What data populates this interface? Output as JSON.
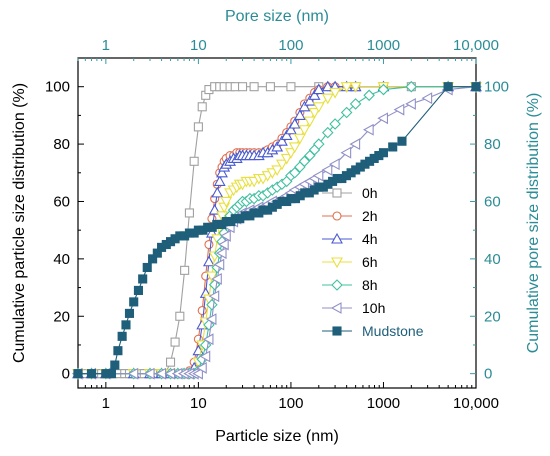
{
  "chart_data": {
    "type": "line",
    "xlabel": "Particle size (nm)",
    "x2label": "Pore size (nm)",
    "ylabel": "Cumulative particle size distribution (%)",
    "y2label": "Cumulative pore size distribution (%)",
    "xscale": "log",
    "xlim": [
      0.5,
      10000
    ],
    "ylim": [
      -5,
      110
    ],
    "x_ticks": [
      {
        "v": 1,
        "label": "1"
      },
      {
        "v": 10,
        "label": "10"
      },
      {
        "v": 100,
        "label": "100"
      },
      {
        "v": 1000,
        "label": "1000"
      },
      {
        "v": 10000,
        "label": "10,000"
      }
    ],
    "y_ticks": [
      {
        "v": 0,
        "label": "0"
      },
      {
        "v": 20,
        "label": "20"
      },
      {
        "v": 40,
        "label": "40"
      },
      {
        "v": 60,
        "label": "60"
      },
      {
        "v": 80,
        "label": "80"
      },
      {
        "v": 100,
        "label": "100"
      }
    ],
    "legend_position": "right-center",
    "series": [
      {
        "name": "0h",
        "marker": "square-open",
        "color": "#a0a0a0",
        "x": [
          0.5,
          0.6,
          0.7,
          0.8,
          0.9,
          1.0,
          1.1,
          1.2,
          1.4,
          1.6,
          1.8,
          2.0,
          2.3,
          2.6,
          3.0,
          3.4,
          3.9,
          4.4,
          5.0,
          5.6,
          6.3,
          7.1,
          8.0,
          9.0,
          10,
          11,
          12,
          13,
          15,
          17,
          19,
          22,
          25,
          30,
          40,
          60,
          100,
          200,
          500,
          1000,
          2000,
          5000,
          10000
        ],
        "y": [
          0,
          0,
          0,
          0,
          0,
          0,
          0,
          0,
          0,
          0,
          0,
          0,
          0,
          0,
          0,
          0,
          0,
          0,
          4,
          11,
          20,
          36,
          56,
          74,
          86,
          93,
          97,
          99,
          100,
          100,
          100,
          100,
          100,
          100,
          100,
          100,
          100,
          100,
          100,
          100,
          100,
          100,
          100
        ]
      },
      {
        "name": "2h",
        "marker": "circle-open",
        "color": "#e07050",
        "x": [
          0.5,
          0.7,
          1,
          2,
          3,
          4,
          5,
          6,
          7,
          8,
          9,
          10,
          11,
          12,
          13,
          14,
          15,
          16,
          17,
          18,
          19,
          20,
          22,
          24,
          26,
          28,
          30,
          33,
          36,
          40,
          45,
          50,
          56,
          63,
          71,
          80,
          90,
          100,
          110,
          125,
          140,
          160,
          180,
          200,
          250,
          300,
          400,
          500,
          1000,
          5000,
          10000
        ],
        "y": [
          0,
          0,
          0,
          0,
          0,
          0,
          0,
          0,
          0,
          1,
          4,
          12,
          22,
          34,
          45,
          54,
          61,
          66,
          70,
          72,
          74,
          75,
          76,
          76,
          77,
          77,
          77,
          77,
          77,
          77,
          77,
          77,
          78,
          79,
          80,
          82,
          84,
          86,
          88,
          91,
          94,
          96,
          98,
          99,
          100,
          100,
          100,
          100,
          100,
          100,
          100
        ]
      },
      {
        "name": "4h",
        "marker": "triangle-up-open",
        "color": "#4a5ad0",
        "x": [
          0.5,
          0.7,
          1,
          2,
          3,
          4,
          5,
          6,
          7,
          8,
          9,
          10,
          11,
          12,
          13,
          14,
          15,
          16,
          17,
          18,
          19,
          20,
          22,
          24,
          26,
          28,
          30,
          33,
          36,
          40,
          45,
          50,
          56,
          63,
          71,
          80,
          90,
          100,
          110,
          125,
          140,
          160,
          180,
          200,
          250,
          300,
          400,
          500,
          1000,
          5000,
          10000
        ],
        "y": [
          0,
          0,
          0,
          0,
          0,
          0,
          0,
          0,
          0,
          0,
          2,
          8,
          17,
          28,
          39,
          49,
          57,
          63,
          67,
          70,
          72,
          73,
          74,
          75,
          75,
          76,
          76,
          76,
          76,
          76,
          76,
          77,
          77,
          78,
          79,
          81,
          83,
          85,
          87,
          90,
          93,
          95,
          97,
          99,
          100,
          100,
          100,
          100,
          100,
          100,
          100
        ]
      },
      {
        "name": "6h",
        "marker": "triangle-down-open",
        "color": "#e8e040",
        "x": [
          0.5,
          0.7,
          1,
          2,
          3,
          4,
          5,
          6,
          7,
          8,
          9,
          10,
          11,
          12,
          13,
          14,
          15,
          16,
          17,
          18,
          19,
          20,
          22,
          24,
          26,
          28,
          30,
          33,
          36,
          40,
          45,
          50,
          56,
          63,
          71,
          80,
          90,
          100,
          110,
          125,
          140,
          160,
          180,
          200,
          250,
          300,
          400,
          500,
          1000,
          5000,
          10000
        ],
        "y": [
          0,
          0,
          0,
          0,
          0,
          0,
          0,
          0,
          0,
          0,
          0,
          4,
          10,
          18,
          26,
          34,
          41,
          47,
          51,
          55,
          58,
          60,
          63,
          64,
          65,
          66,
          66,
          67,
          67,
          67,
          68,
          68,
          69,
          70,
          71,
          73,
          75,
          77,
          79,
          82,
          85,
          88,
          91,
          93,
          96,
          98,
          100,
          100,
          100,
          100,
          100
        ]
      },
      {
        "name": "8h",
        "marker": "diamond-open",
        "color": "#40c0a0",
        "x": [
          0.5,
          0.7,
          1,
          2,
          3,
          4,
          5,
          6,
          7,
          8,
          9,
          10,
          11,
          12,
          13,
          14,
          15,
          16,
          17,
          18,
          19,
          20,
          22,
          24,
          26,
          28,
          30,
          33,
          36,
          40,
          45,
          50,
          56,
          63,
          71,
          80,
          90,
          100,
          110,
          125,
          140,
          160,
          180,
          200,
          250,
          300,
          400,
          500,
          700,
          1000,
          2000,
          5000,
          10000
        ],
        "y": [
          0,
          0,
          0,
          0,
          0,
          0,
          0,
          0,
          0,
          0,
          0,
          1,
          5,
          10,
          17,
          24,
          31,
          37,
          42,
          46,
          49,
          52,
          55,
          57,
          58,
          59,
          60,
          60,
          61,
          61,
          62,
          62,
          63,
          64,
          65,
          66,
          67,
          69,
          70,
          72,
          74,
          76,
          78,
          80,
          84,
          87,
          91,
          94,
          97,
          99,
          100,
          100,
          100
        ]
      },
      {
        "name": "10h",
        "marker": "triangle-left-open",
        "color": "#9090c8",
        "x": [
          0.5,
          0.7,
          1,
          2,
          3,
          4,
          5,
          6,
          7,
          8,
          9,
          10,
          11,
          12,
          13,
          14,
          15,
          16,
          17,
          18,
          19,
          20,
          22,
          24,
          26,
          28,
          30,
          33,
          36,
          40,
          45,
          50,
          56,
          63,
          71,
          80,
          90,
          100,
          110,
          125,
          140,
          160,
          180,
          200,
          250,
          300,
          400,
          500,
          700,
          1000,
          1500,
          2000,
          3000,
          5000,
          10000
        ],
        "y": [
          0,
          0,
          0,
          0,
          0,
          0,
          0,
          0,
          0,
          0,
          0,
          0,
          2,
          6,
          12,
          19,
          27,
          33,
          38,
          42,
          45,
          48,
          51,
          53,
          54,
          55,
          56,
          56,
          57,
          57,
          58,
          58,
          59,
          60,
          60,
          61,
          62,
          63,
          64,
          65,
          66,
          67,
          68,
          69,
          71,
          73,
          77,
          80,
          85,
          89,
          92,
          94,
          96,
          99,
          100
        ]
      },
      {
        "name": "Mudstone",
        "marker": "square-filled",
        "color": "#1f5f7a",
        "x": [
          0.5,
          0.7,
          1.0,
          1.15,
          1.25,
          1.35,
          1.5,
          1.65,
          1.8,
          2.0,
          2.25,
          2.5,
          2.8,
          3.2,
          3.6,
          4.0,
          4.5,
          5.0,
          5.6,
          6.3,
          7.1,
          8.0,
          9.0,
          10,
          11.2,
          12.6,
          14.1,
          15.8,
          17.8,
          20,
          22.4,
          25,
          28,
          32,
          36,
          40,
          45,
          50,
          56,
          63,
          71,
          80,
          90,
          100,
          112,
          126,
          141,
          158,
          178,
          200,
          224,
          251,
          282,
          316,
          355,
          398,
          447,
          501,
          562,
          631,
          708,
          794,
          891,
          1000,
          1259,
          1585,
          5000,
          10000
        ],
        "y": [
          0,
          0,
          0,
          0,
          3,
          8,
          13,
          17,
          21,
          25,
          29,
          33,
          37,
          40,
          42,
          44,
          45,
          46,
          47,
          48,
          48,
          49,
          49,
          50,
          50,
          51,
          51,
          52,
          52,
          53,
          53,
          54,
          54,
          55,
          55,
          56,
          56,
          57,
          57,
          58,
          59,
          60,
          60,
          61,
          61,
          62,
          63,
          63,
          64,
          65,
          65,
          66,
          67,
          68,
          68,
          69,
          70,
          71,
          72,
          73,
          74,
          75,
          76,
          77,
          79,
          81,
          100,
          100
        ]
      }
    ]
  }
}
